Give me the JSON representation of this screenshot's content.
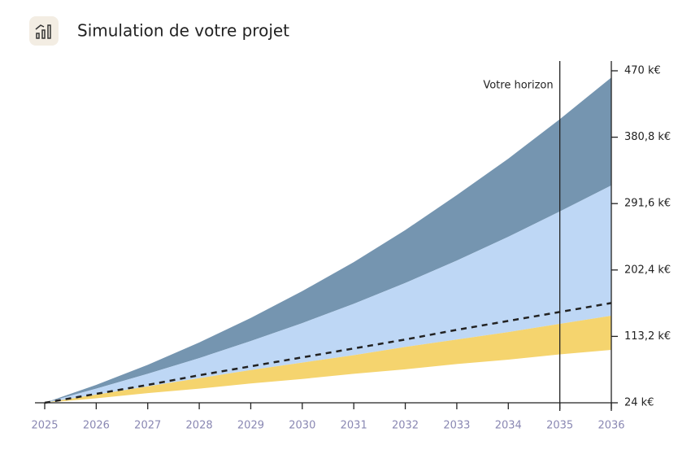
{
  "chart_data": {
    "type": "band",
    "title": "Simulation de votre projet",
    "x": [
      2025,
      2026,
      2027,
      2028,
      2029,
      2030,
      2031,
      2032,
      2033,
      2034,
      2035,
      2036
    ],
    "series": [
      {
        "color": "#7595b0",
        "values": [
          24,
          48,
          75,
          105,
          138,
          174,
          213,
          256,
          303,
          352,
          405,
          461
        ]
      },
      {
        "color": "#bed7f5",
        "values": [
          24,
          43,
          63,
          84,
          107,
          131,
          157,
          185,
          215,
          247,
          281,
          316
        ]
      },
      {
        "color": "#f5d46e",
        "values": [
          24,
          35,
          46,
          57,
          68,
          78,
          88,
          99,
          109,
          119,
          130,
          141
        ]
      },
      {
        "color": "#f5d46e",
        "values": [
          24,
          30,
          37,
          43,
          50,
          56,
          63,
          69,
          76,
          82,
          89,
          95
        ]
      }
    ],
    "line": {
      "color": "#222222",
      "values": [
        24,
        36,
        48,
        61,
        73,
        85,
        97,
        109,
        122,
        134,
        146,
        158
      ]
    },
    "horizon": {
      "x": 2035,
      "label": "Votre horizon"
    },
    "xlim": [
      2025,
      2036
    ],
    "xticks": [
      2025,
      2026,
      2027,
      2028,
      2029,
      2030,
      2031,
      2032,
      2033,
      2034,
      2035,
      2036
    ],
    "ylim": [
      24,
      470
    ],
    "yticks": [
      {
        "value": 24,
        "label": "24 k€"
      },
      {
        "value": 113.2,
        "label": "113,2 k€"
      },
      {
        "value": 202.4,
        "label": "202,4 k€"
      },
      {
        "value": 291.6,
        "label": "291,6 k€"
      },
      {
        "value": 380.8,
        "label": "380,8 k€"
      },
      {
        "value": 470,
        "label": "470 k€"
      }
    ]
  }
}
